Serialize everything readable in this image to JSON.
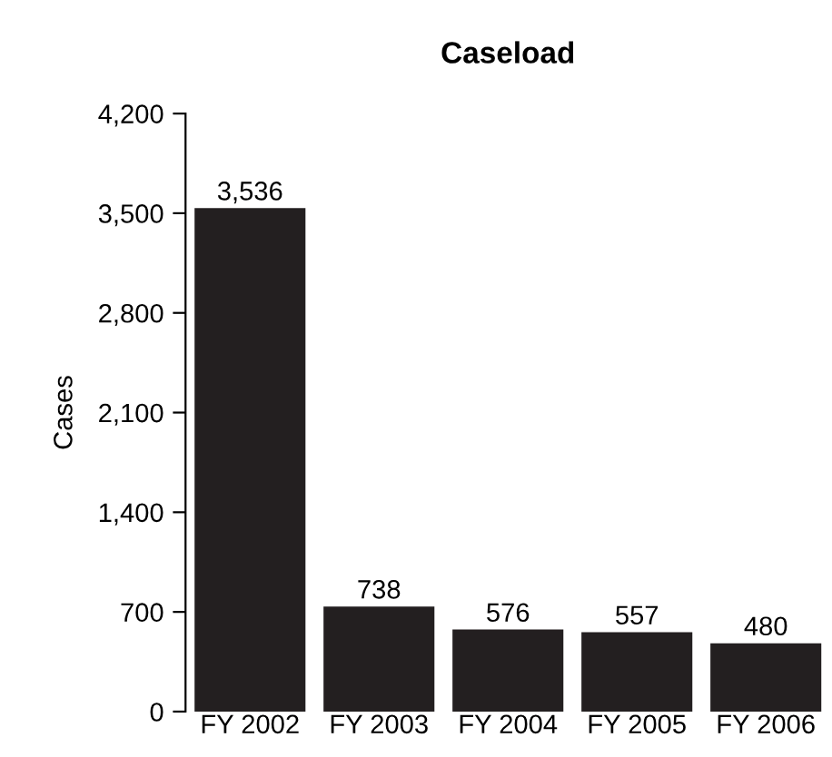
{
  "chart_data": {
    "type": "bar",
    "title": "Caseload",
    "ylabel": "Cases",
    "categories": [
      "FY 2002",
      "FY 2003",
      "FY 2004",
      "FY 2005",
      "FY 2006"
    ],
    "values": [
      3536,
      738,
      576,
      557,
      480
    ],
    "value_labels": [
      "3,536",
      "738",
      "576",
      "557",
      "480"
    ],
    "color": "#231f20",
    "ylim": [
      0,
      4200
    ],
    "yticks": [
      {
        "value": 0,
        "label": "0"
      },
      {
        "value": 700,
        "label": "700"
      },
      {
        "value": 1400,
        "label": "1,400"
      },
      {
        "value": 2100,
        "label": "2,100"
      },
      {
        "value": 2800,
        "label": "2,800"
      },
      {
        "value": 3500,
        "label": "3,500"
      },
      {
        "value": 4200,
        "label": "4,200"
      }
    ],
    "grid": false,
    "legend": false
  }
}
